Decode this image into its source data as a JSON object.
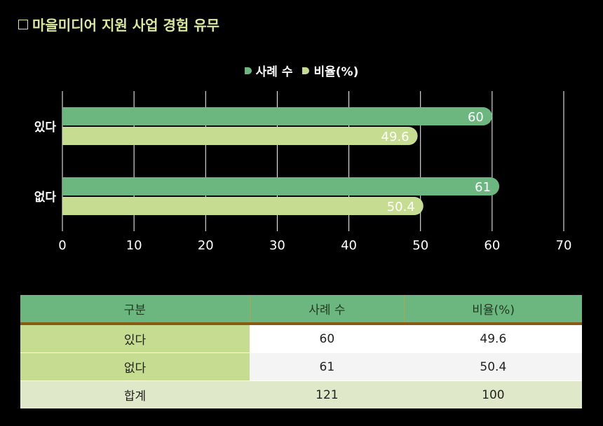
{
  "title": "마을미디어 지원 사업 경험 유무",
  "chart_data": {
    "type": "bar",
    "orientation": "horizontal",
    "categories": [
      "있다",
      "없다"
    ],
    "series": [
      {
        "name": "사례 수",
        "values": [
          60,
          61
        ],
        "color": "#6bb77f"
      },
      {
        "name": "비율(%)",
        "values": [
          49.6,
          50.4
        ],
        "color": "#c6dc90"
      }
    ],
    "xlim": [
      0,
      70
    ],
    "xticks": [
      0,
      10,
      20,
      30,
      40,
      50,
      60,
      70
    ],
    "grid": true,
    "legend_position": "top-center"
  },
  "table": {
    "headers": [
      "구분",
      "사례 수",
      "비율(%)"
    ],
    "rows": [
      {
        "label": "있다",
        "count": "60",
        "ratio": "49.6"
      },
      {
        "label": "없다",
        "count": "61",
        "ratio": "50.4"
      }
    ],
    "total": {
      "label": "합계",
      "count": "121",
      "ratio": "100"
    }
  }
}
